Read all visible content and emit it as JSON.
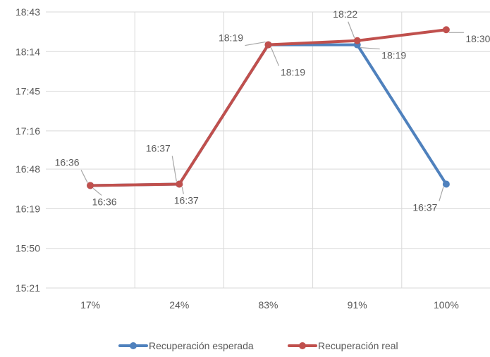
{
  "chart_data": {
    "type": "line",
    "categories": [
      "17%",
      "24%",
      "83%",
      "91%",
      "100%"
    ],
    "y_ticks": [
      "15:21",
      "15:50",
      "16:19",
      "16:48",
      "17:16",
      "17:45",
      "18:14",
      "18:43"
    ],
    "ylim": [
      "15:21",
      "18:43"
    ],
    "grid": true,
    "legend_position": "bottom",
    "series": [
      {
        "name": "Recuperación esperada",
        "color": "#4f81bd",
        "values": [
          "16:36",
          "16:37",
          "18:19",
          "18:19",
          "16:37"
        ]
      },
      {
        "name": "Recuperación real",
        "color": "#c0504d",
        "values": [
          "16:36",
          "16:37",
          "18:19",
          "18:22",
          "18:30"
        ]
      }
    ]
  }
}
